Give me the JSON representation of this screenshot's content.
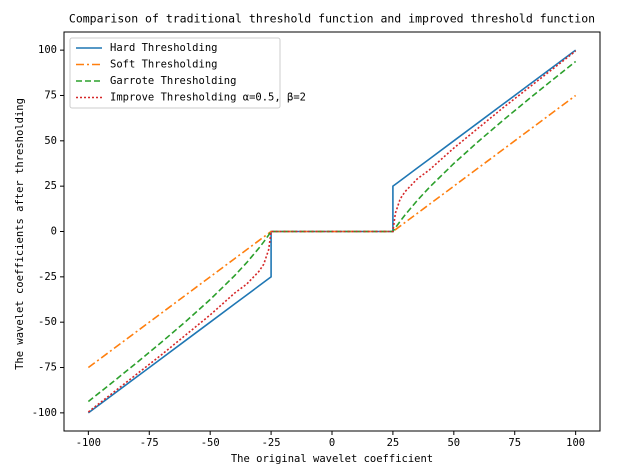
{
  "chart_data": {
    "type": "line",
    "title": "Comparison of traditional threshold function and improved threshold function",
    "xlabel": "The original wavelet coefficient",
    "ylabel": "The wavelet coefficients after thresholding",
    "x": [
      -100,
      -90,
      -80,
      -70,
      -60,
      -50,
      -40,
      -35,
      -30,
      -28,
      -26,
      -25,
      -25,
      0,
      25,
      25,
      26,
      28,
      30,
      35,
      40,
      50,
      60,
      70,
      80,
      90,
      100
    ],
    "series": [
      {
        "name": "Hard Thresholding",
        "color": "#1f77b4",
        "dash": "solid",
        "values": [
          -100,
          -90,
          -80,
          -70,
          -60,
          -50,
          -40,
          -35,
          -30,
          -28,
          -26,
          -25,
          0,
          0,
          0,
          25,
          26,
          28,
          30,
          35,
          40,
          50,
          60,
          70,
          80,
          90,
          100
        ]
      },
      {
        "name": "Soft Thresholding",
        "color": "#ff7f0e",
        "dash": "dashdot",
        "values": [
          -75,
          -65,
          -55,
          -45,
          -35,
          -25,
          -15,
          -10,
          -5,
          -3,
          -1,
          0,
          0,
          0,
          0,
          0,
          1,
          3,
          5,
          10,
          15,
          25,
          35,
          45,
          55,
          65,
          75
        ]
      },
      {
        "name": "Garrote Thresholding",
        "color": "#2ca02c",
        "dash": "dashed",
        "values": [
          -93.75,
          -83.06,
          -72.19,
          -61.07,
          -49.58,
          -37.5,
          -24.38,
          -17.14,
          -9.17,
          -5.68,
          -1.96,
          0,
          0,
          0,
          0,
          0,
          1.96,
          5.68,
          9.17,
          17.14,
          24.38,
          37.5,
          49.58,
          61.07,
          72.19,
          83.06,
          93.75
        ]
      },
      {
        "name": "Improve Thresholding  α=0.5, β=2",
        "color": "#d62728",
        "dash": "dotted",
        "values": [
          -99.5,
          -89,
          -78.5,
          -68,
          -57,
          -46,
          -34,
          -29,
          -22,
          -18,
          -10,
          0,
          0,
          0,
          0,
          0,
          10,
          18,
          22,
          29,
          34,
          46,
          57,
          68,
          78.5,
          89,
          99.5
        ]
      }
    ],
    "xlim": [
      -110,
      110
    ],
    "xticks": [
      -100,
      -75,
      -50,
      -25,
      0,
      25,
      50,
      75,
      100
    ],
    "ylim": [
      -110,
      110
    ],
    "yticks": [
      -100,
      -75,
      -50,
      -25,
      0,
      25,
      50,
      75,
      100
    ],
    "grid": false,
    "legend": "upper left"
  }
}
